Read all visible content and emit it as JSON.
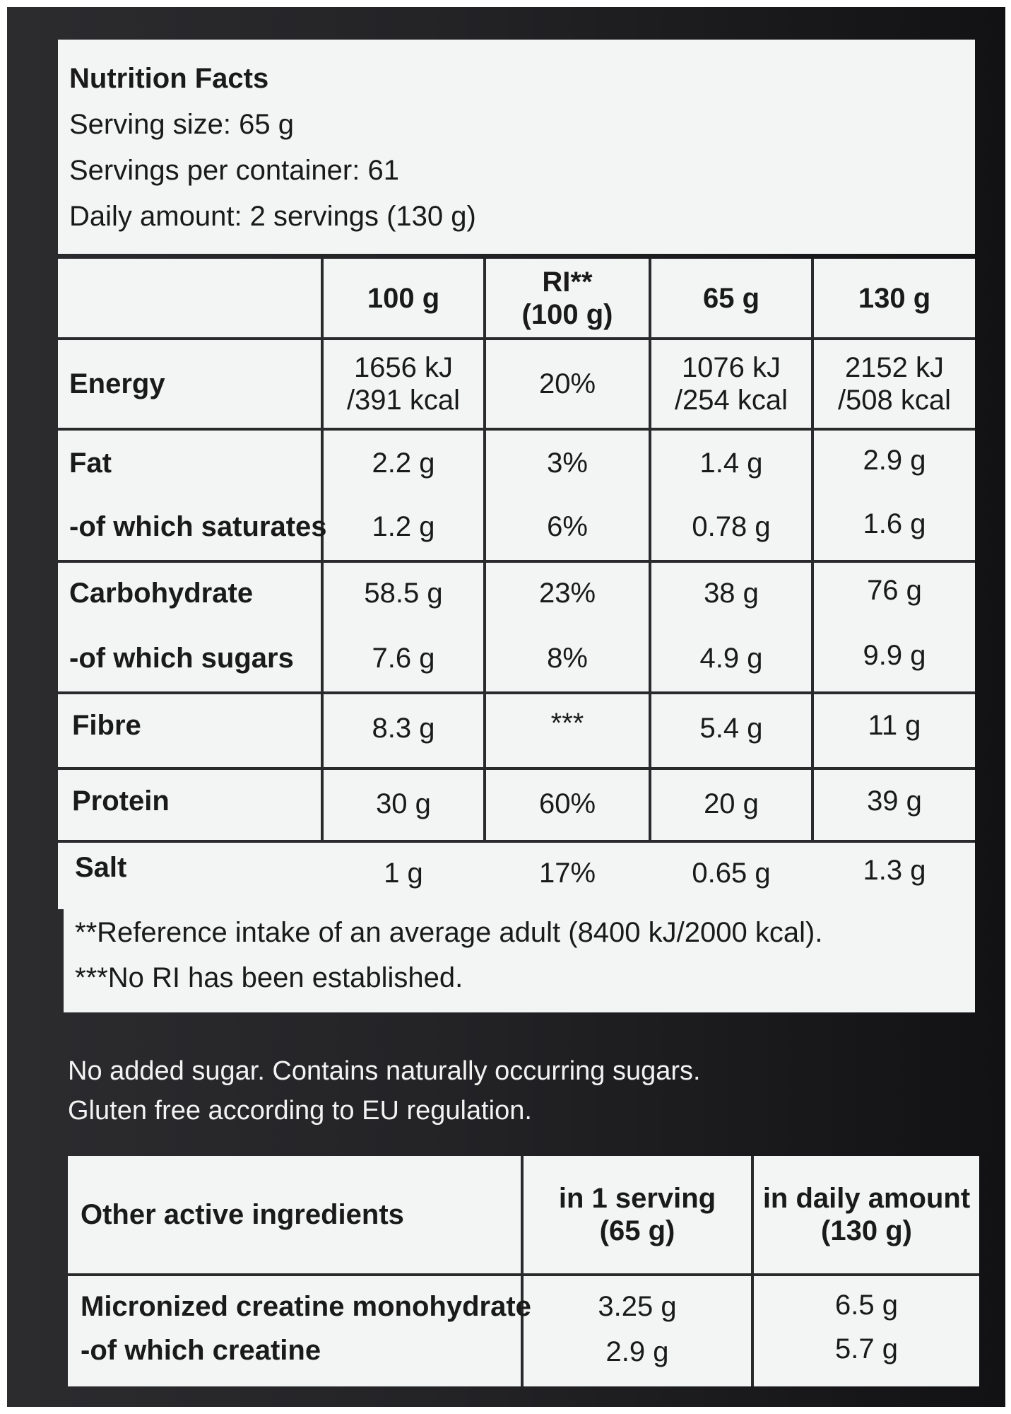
{
  "header": {
    "title": "Nutrition Facts",
    "serving_size": "Serving size: 65 g",
    "servings_per_container": "Servings per container: 61",
    "daily_amount": "Daily amount: 2 servings (130 g)"
  },
  "table": {
    "columns": [
      "100 g",
      "RI**\n(100 g)",
      "65 g",
      "130 g"
    ],
    "col_ri_line1": "RI**",
    "col_ri_line2": "(100 g)",
    "rows": [
      {
        "label": "Energy",
        "c1a": "1656 kJ",
        "c1b": "/391 kcal",
        "c2": "20%",
        "c3a": "1076 kJ",
        "c3b": "/254 kcal",
        "c4a": "2152 kJ",
        "c4b": "/508 kcal"
      },
      {
        "label": "Fat",
        "c1": "2.2 g",
        "c2": "3%",
        "c3": "1.4 g",
        "c4": "2.9 g"
      },
      {
        "label": "-of which saturates",
        "c1": "1.2 g",
        "c2": "6%",
        "c3": "0.78 g",
        "c4": "1.6 g"
      },
      {
        "label": "Carbohydrate",
        "c1": "58.5 g",
        "c2": "23%",
        "c3": "38 g",
        "c4": "76 g"
      },
      {
        "label": "-of which sugars",
        "c1": "7.6 g",
        "c2": "8%",
        "c3": "4.9 g",
        "c4": "9.9 g"
      },
      {
        "label": "Fibre",
        "c1": "8.3 g",
        "c2": "***",
        "c3": "5.4 g",
        "c4": "11 g"
      },
      {
        "label": "Protein",
        "c1": "30 g",
        "c2": "60%",
        "c3": "20 g",
        "c4": "39 g"
      },
      {
        "label": "Salt",
        "c1": "1 g",
        "c2": "17%",
        "c3": "0.65 g",
        "c4": "1.3 g"
      }
    ],
    "footnote1": "**Reference intake of an average adult (8400 kJ/2000 kcal).",
    "footnote2": "***No RI has been established."
  },
  "notes": {
    "line1": "No added sugar. Contains naturally occurring sugars.",
    "line2": "Gluten free according to EU regulation."
  },
  "other": {
    "header_label": "Other active ingredients",
    "col1_line1": "in 1 serving",
    "col1_line2": "(65 g)",
    "col2_line1": "in daily amount",
    "col2_line2": "(130 g)",
    "rows": [
      {
        "label": "Micronized creatine monohydrate",
        "c1": "3.25 g",
        "c2": "6.5 g"
      },
      {
        "label": "-of which creatine",
        "c1": "2.9 g",
        "c2": "5.7 g"
      }
    ]
  }
}
